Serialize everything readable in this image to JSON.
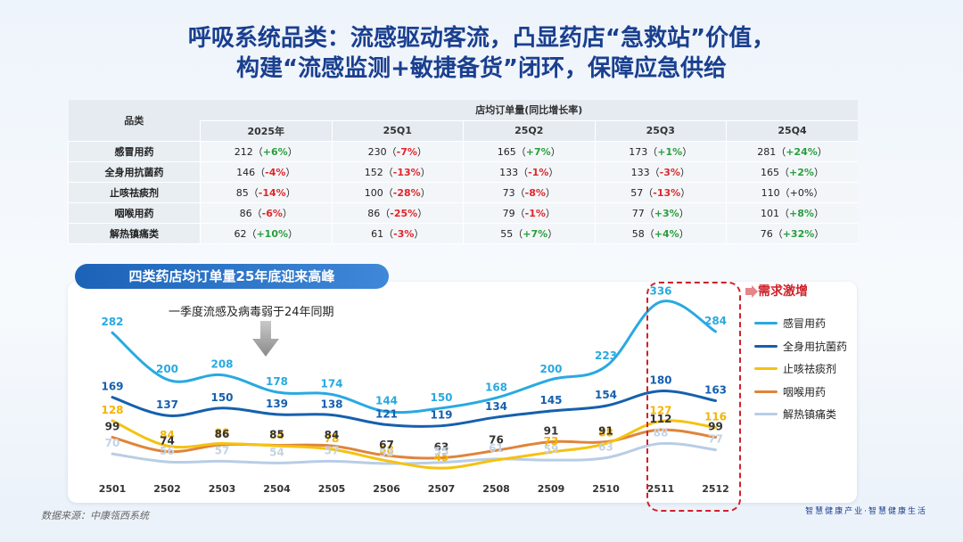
{
  "title": {
    "line1": "呼吸系统品类：流感驱动客流，凸显药店“急救站”价值，",
    "line2": "构建“流感监测+敏捷备货”闭环，保障应急供给"
  },
  "table": {
    "row_header": "品类",
    "group_header": "店均订单量(同比增长率)",
    "periods": [
      "2025年",
      "25Q1",
      "25Q2",
      "25Q3",
      "25Q4"
    ],
    "rows": [
      {
        "category": "感冒用药",
        "cells": [
          {
            "value": "212",
            "change": "+6%",
            "tone": "pos"
          },
          {
            "value": "230",
            "change": "-7%",
            "tone": "neg"
          },
          {
            "value": "165",
            "change": "+7%",
            "tone": "pos"
          },
          {
            "value": "173",
            "change": "+1%",
            "tone": "pos"
          },
          {
            "value": "281",
            "change": "+24%",
            "tone": "pos"
          }
        ]
      },
      {
        "category": "全身用抗菌药",
        "cells": [
          {
            "value": "146",
            "change": "-4%",
            "tone": "neg"
          },
          {
            "value": "152",
            "change": "-13%",
            "tone": "neg"
          },
          {
            "value": "133",
            "change": "-1%",
            "tone": "neg"
          },
          {
            "value": "133",
            "change": "-3%",
            "tone": "neg"
          },
          {
            "value": "165",
            "change": "+2%",
            "tone": "pos"
          }
        ]
      },
      {
        "category": "止咳祛痰剂",
        "cells": [
          {
            "value": "85",
            "change": "-14%",
            "tone": "neg"
          },
          {
            "value": "100",
            "change": "-28%",
            "tone": "neg"
          },
          {
            "value": "73",
            "change": "-8%",
            "tone": "neg"
          },
          {
            "value": "57",
            "change": "-13%",
            "tone": "neg"
          },
          {
            "value": "110",
            "change": "+0%",
            "tone": "neu"
          }
        ]
      },
      {
        "category": "咽喉用药",
        "cells": [
          {
            "value": "86",
            "change": "-6%",
            "tone": "neg"
          },
          {
            "value": "86",
            "change": "-25%",
            "tone": "neg"
          },
          {
            "value": "79",
            "change": "-1%",
            "tone": "neg"
          },
          {
            "value": "77",
            "change": "+3%",
            "tone": "pos"
          },
          {
            "value": "101",
            "change": "+8%",
            "tone": "pos"
          }
        ]
      },
      {
        "category": "解热镇痛类",
        "cells": [
          {
            "value": "62",
            "change": "+10%",
            "tone": "pos"
          },
          {
            "value": "61",
            "change": "-3%",
            "tone": "neg"
          },
          {
            "value": "55",
            "change": "+7%",
            "tone": "pos"
          },
          {
            "value": "58",
            "change": "+4%",
            "tone": "pos"
          },
          {
            "value": "76",
            "change": "+32%",
            "tone": "pos"
          }
        ]
      }
    ]
  },
  "chart_data": {
    "type": "line",
    "title": "四类药店均订单量25年底迎来高峰",
    "categories": [
      "2501",
      "2502",
      "2503",
      "2504",
      "2505",
      "2506",
      "2507",
      "2508",
      "2509",
      "2510",
      "2511",
      "2512"
    ],
    "series": [
      {
        "name": "感冒用药",
        "color": "#29a9e1",
        "label_color": "#29a9e1",
        "values": [
          282,
          200,
          208,
          178,
          174,
          144,
          150,
          168,
          200,
          223,
          336,
          284
        ]
      },
      {
        "name": "全身用抗菌药",
        "color": "#1560ae",
        "label_color": "#1560ae",
        "values": [
          169,
          137,
          150,
          139,
          138,
          121,
          119,
          134,
          145,
          154,
          180,
          163
        ]
      },
      {
        "name": "止咳祛痰剂",
        "color": "#f5c211",
        "label_color": "#f5b400",
        "values": [
          128,
          84,
          88,
          84,
          78,
          58,
          45,
          null,
          73,
          88,
          127,
          116
        ]
      },
      {
        "name": "咽喉用药",
        "color": "#e0843b",
        "label_color": "#333333",
        "values": [
          99,
          74,
          86,
          85,
          84,
          67,
          63,
          76,
          91,
          91,
          112,
          99
        ]
      },
      {
        "name": "解热镇痛类",
        "color": "#b8cde6",
        "label_color": "#c3d3e6",
        "values": [
          70,
          56,
          57,
          54,
          57,
          53,
          55,
          61,
          59,
          63,
          88,
          77
        ]
      }
    ],
    "annotation": "一季度流感及病毒弱于24年同期",
    "highlight_label": "需求激增",
    "legend_position": "right"
  },
  "source": "数据来源：中康瓴西系统",
  "slogan": "智慧健康产业·智慧健康生活"
}
